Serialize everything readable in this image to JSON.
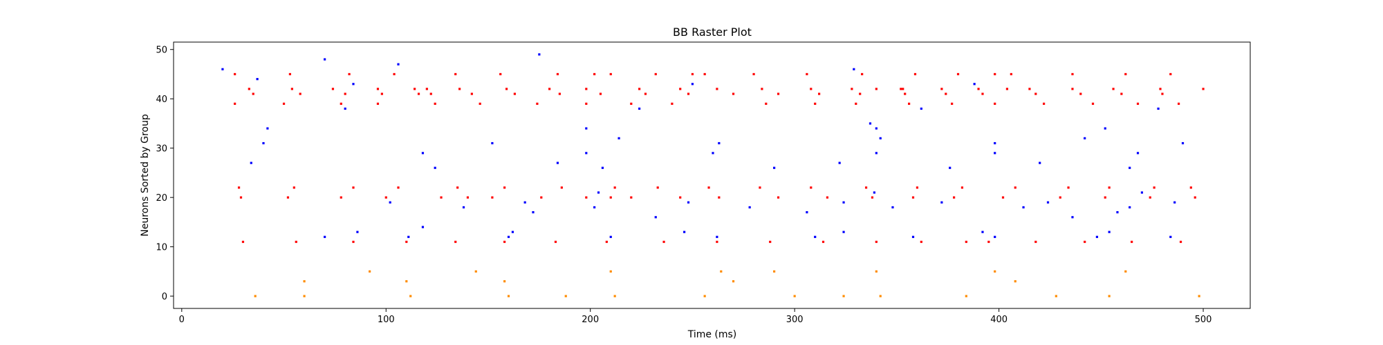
{
  "chart_data": {
    "type": "scatter",
    "title": "BB Raster Plot",
    "xlabel": "Time (ms)",
    "ylabel": "Neurons Sorted by Group",
    "xlim": [
      -4,
      523
    ],
    "ylim": [
      -2.5,
      51.5
    ],
    "xticks": [
      0,
      100,
      200,
      300,
      400,
      500
    ],
    "yticks": [
      0,
      10,
      20,
      30,
      40,
      50
    ],
    "grid": false,
    "legend": "none",
    "series": [
      {
        "color": "#ff0000",
        "points": [
          [
            26,
            45
          ],
          [
            26,
            39
          ],
          [
            28,
            22
          ],
          [
            29,
            20
          ],
          [
            30,
            11
          ],
          [
            33,
            42
          ],
          [
            35,
            41
          ],
          [
            50,
            39
          ],
          [
            52,
            20
          ],
          [
            53,
            45
          ],
          [
            54,
            42
          ],
          [
            55,
            22
          ],
          [
            56,
            11
          ],
          [
            58,
            41
          ],
          [
            74,
            42
          ],
          [
            78,
            39
          ],
          [
            78,
            20
          ],
          [
            80,
            41
          ],
          [
            82,
            45
          ],
          [
            84,
            22
          ],
          [
            84,
            11
          ],
          [
            96,
            42
          ],
          [
            96,
            39
          ],
          [
            98,
            41
          ],
          [
            100,
            20
          ],
          [
            104,
            45
          ],
          [
            106,
            22
          ],
          [
            110,
            11
          ],
          [
            114,
            42
          ],
          [
            116,
            41
          ],
          [
            120,
            42
          ],
          [
            122,
            41
          ],
          [
            124,
            39
          ],
          [
            127,
            20
          ],
          [
            134,
            45
          ],
          [
            134,
            11
          ],
          [
            135,
            22
          ],
          [
            136,
            42
          ],
          [
            140,
            20
          ],
          [
            142,
            41
          ],
          [
            146,
            39
          ],
          [
            152,
            20
          ],
          [
            156,
            45
          ],
          [
            158,
            22
          ],
          [
            158,
            11
          ],
          [
            159,
            42
          ],
          [
            163,
            41
          ],
          [
            174,
            39
          ],
          [
            176,
            20
          ],
          [
            180,
            42
          ],
          [
            183,
            11
          ],
          [
            184,
            45
          ],
          [
            185,
            41
          ],
          [
            186,
            22
          ],
          [
            198,
            42
          ],
          [
            198,
            39
          ],
          [
            198,
            20
          ],
          [
            202,
            45
          ],
          [
            205,
            41
          ],
          [
            208,
            11
          ],
          [
            210,
            45
          ],
          [
            210,
            20
          ],
          [
            212,
            22
          ],
          [
            220,
            20
          ],
          [
            220,
            39
          ],
          [
            224,
            42
          ],
          [
            227,
            41
          ],
          [
            232,
            45
          ],
          [
            233,
            22
          ],
          [
            236,
            11
          ],
          [
            240,
            39
          ],
          [
            244,
            42
          ],
          [
            244,
            20
          ],
          [
            248,
            41
          ],
          [
            250,
            45
          ],
          [
            256,
            45
          ],
          [
            258,
            22
          ],
          [
            262,
            42
          ],
          [
            262,
            11
          ],
          [
            263,
            20
          ],
          [
            270,
            41
          ],
          [
            280,
            45
          ],
          [
            283,
            22
          ],
          [
            284,
            42
          ],
          [
            286,
            39
          ],
          [
            288,
            11
          ],
          [
            292,
            41
          ],
          [
            292,
            20
          ],
          [
            306,
            45
          ],
          [
            308,
            42
          ],
          [
            308,
            22
          ],
          [
            310,
            39
          ],
          [
            312,
            41
          ],
          [
            314,
            11
          ],
          [
            316,
            20
          ],
          [
            328,
            42
          ],
          [
            330,
            39
          ],
          [
            332,
            41
          ],
          [
            333,
            45
          ],
          [
            335,
            22
          ],
          [
            338,
            20
          ],
          [
            340,
            11
          ],
          [
            340,
            42
          ],
          [
            353,
            42
          ],
          [
            356,
            39
          ],
          [
            358,
            20
          ],
          [
            359,
            45
          ],
          [
            360,
            22
          ],
          [
            362,
            11
          ],
          [
            372,
            42
          ],
          [
            374,
            41
          ],
          [
            377,
            39
          ],
          [
            378,
            20
          ],
          [
            380,
            45
          ],
          [
            382,
            22
          ],
          [
            384,
            11
          ],
          [
            390,
            42
          ],
          [
            392,
            41
          ],
          [
            395,
            11
          ],
          [
            398,
            45
          ],
          [
            398,
            39
          ],
          [
            402,
            20
          ],
          [
            404,
            42
          ],
          [
            406,
            45
          ],
          [
            408,
            22
          ],
          [
            415,
            42
          ],
          [
            418,
            41
          ],
          [
            418,
            11
          ],
          [
            422,
            39
          ],
          [
            430,
            20
          ],
          [
            434,
            22
          ],
          [
            436,
            45
          ],
          [
            436,
            42
          ],
          [
            440,
            41
          ],
          [
            442,
            11
          ],
          [
            446,
            39
          ],
          [
            452,
            20
          ],
          [
            454,
            22
          ],
          [
            456,
            42
          ],
          [
            460,
            41
          ],
          [
            462,
            45
          ],
          [
            465,
            11
          ],
          [
            468,
            39
          ],
          [
            474,
            20
          ],
          [
            476,
            22
          ],
          [
            479,
            42
          ],
          [
            480,
            41
          ],
          [
            484,
            45
          ],
          [
            488,
            39
          ],
          [
            489,
            11
          ],
          [
            494,
            22
          ],
          [
            496,
            20
          ],
          [
            500,
            42
          ],
          [
            352,
            42
          ],
          [
            354,
            41
          ]
        ]
      },
      {
        "color": "#0000ff",
        "points": [
          [
            20,
            46
          ],
          [
            34,
            27
          ],
          [
            37,
            44
          ],
          [
            40,
            31
          ],
          [
            42,
            34
          ],
          [
            70,
            12
          ],
          [
            70,
            48
          ],
          [
            80,
            38
          ],
          [
            84,
            43
          ],
          [
            86,
            13
          ],
          [
            102,
            19
          ],
          [
            106,
            47
          ],
          [
            111,
            12
          ],
          [
            118,
            29
          ],
          [
            118,
            14
          ],
          [
            124,
            26
          ],
          [
            138,
            18
          ],
          [
            152,
            31
          ],
          [
            168,
            19
          ],
          [
            172,
            17
          ],
          [
            175,
            49
          ],
          [
            184,
            27
          ],
          [
            198,
            34
          ],
          [
            198,
            29
          ],
          [
            202,
            18
          ],
          [
            204,
            21
          ],
          [
            206,
            26
          ],
          [
            210,
            12
          ],
          [
            214,
            32
          ],
          [
            224,
            38
          ],
          [
            232,
            16
          ],
          [
            246,
            13
          ],
          [
            248,
            19
          ],
          [
            250,
            43
          ],
          [
            260,
            29
          ],
          [
            262,
            12
          ],
          [
            263,
            31
          ],
          [
            278,
            18
          ],
          [
            290,
            26
          ],
          [
            306,
            17
          ],
          [
            310,
            12
          ],
          [
            322,
            27
          ],
          [
            324,
            19
          ],
          [
            324,
            13
          ],
          [
            329,
            46
          ],
          [
            337,
            35
          ],
          [
            339,
            21
          ],
          [
            340,
            34
          ],
          [
            340,
            29
          ],
          [
            342,
            32
          ],
          [
            348,
            18
          ],
          [
            358,
            12
          ],
          [
            362,
            38
          ],
          [
            372,
            19
          ],
          [
            376,
            26
          ],
          [
            388,
            43
          ],
          [
            392,
            13
          ],
          [
            398,
            12
          ],
          [
            398,
            31
          ],
          [
            398,
            29
          ],
          [
            412,
            18
          ],
          [
            420,
            27
          ],
          [
            424,
            19
          ],
          [
            436,
            16
          ],
          [
            442,
            32
          ],
          [
            448,
            12
          ],
          [
            452,
            34
          ],
          [
            454,
            13
          ],
          [
            458,
            17
          ],
          [
            464,
            26
          ],
          [
            464,
            18
          ],
          [
            468,
            29
          ],
          [
            470,
            21
          ],
          [
            478,
            38
          ],
          [
            484,
            12
          ],
          [
            486,
            19
          ],
          [
            490,
            31
          ],
          [
            160,
            12
          ],
          [
            162,
            13
          ]
        ]
      },
      {
        "color": "#ff8c00",
        "points": [
          [
            36,
            0
          ],
          [
            60,
            3
          ],
          [
            60,
            0
          ],
          [
            92,
            5
          ],
          [
            110,
            3
          ],
          [
            112,
            0
          ],
          [
            144,
            5
          ],
          [
            158,
            3
          ],
          [
            160,
            0
          ],
          [
            188,
            0
          ],
          [
            210,
            5
          ],
          [
            212,
            0
          ],
          [
            256,
            0
          ],
          [
            264,
            5
          ],
          [
            270,
            3
          ],
          [
            290,
            5
          ],
          [
            300,
            0
          ],
          [
            324,
            0
          ],
          [
            340,
            5
          ],
          [
            342,
            0
          ],
          [
            384,
            0
          ],
          [
            398,
            5
          ],
          [
            408,
            3
          ],
          [
            428,
            0
          ],
          [
            454,
            0
          ],
          [
            462,
            5
          ],
          [
            498,
            0
          ]
        ]
      }
    ]
  }
}
